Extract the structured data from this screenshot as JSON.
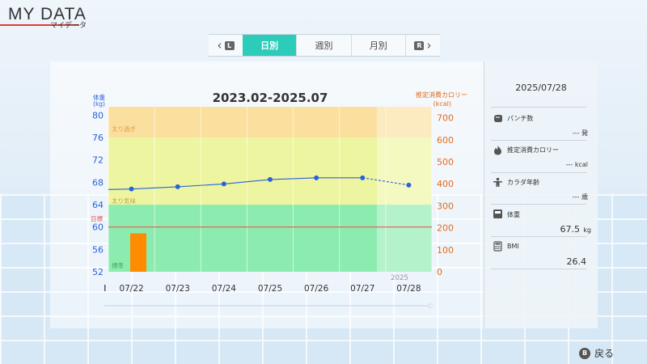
{
  "header": {
    "title": "MY DATA",
    "subtitle": "マイデータ"
  },
  "tabs": {
    "prev_badge": "L",
    "next_badge": "R",
    "items": [
      {
        "label": "日別",
        "active": true
      },
      {
        "label": "週別",
        "active": false
      },
      {
        "label": "月別",
        "active": false
      }
    ]
  },
  "chart": {
    "title": "2023.02-2025.07",
    "left_axis_label": "体重",
    "left_axis_unit": "(kg)",
    "right_axis_label": "推定消費カロリー",
    "right_axis_unit": "(kcal)",
    "zone_labels": {
      "over": "太り過ぎ",
      "slightly_over": "太り気味",
      "target": "目標",
      "standard": "標準"
    },
    "year_label": "2025"
  },
  "chart_data": {
    "type": "line",
    "categories": [
      "07/22",
      "07/23",
      "07/24",
      "07/25",
      "07/26",
      "07/27",
      "07/28"
    ],
    "series": [
      {
        "name": "体重",
        "axis": "left",
        "values": [
          66.8,
          67.2,
          67.7,
          68.5,
          68.8,
          68.8,
          67.5
        ]
      }
    ],
    "bar_series": [
      {
        "name": "推定消費カロリー",
        "axis": "right",
        "values": [
          175,
          null,
          null,
          null,
          null,
          null,
          null
        ]
      }
    ],
    "left_ticks": [
      52,
      56,
      60,
      64,
      68,
      72,
      76,
      80
    ],
    "right_ticks": [
      0,
      100,
      200,
      300,
      400,
      500,
      600,
      700
    ],
    "ylim_left": [
      52,
      81.5
    ],
    "ylim_right": [
      0,
      750
    ],
    "target_weight": 60,
    "zones": {
      "standard_max": 64,
      "slightly_over_max": 76
    },
    "colors": {
      "weight_line": "#2a62d8",
      "calorie_bar": "#ff8c00",
      "target_line": "#e85a5a",
      "zone_over": "#fbdf9e",
      "zone_slightly_over": "#eef5a0",
      "zone_standard": "#8cecb0",
      "left_axis_text": "#2a62d8",
      "right_axis_text": "#e66a1a"
    }
  },
  "side": {
    "date": "2025/07/28",
    "items": [
      {
        "icon": "punch-icon",
        "label": "パンチ数",
        "value": "--- 発"
      },
      {
        "icon": "flame-icon",
        "label": "推定消費カロリー",
        "value": "--- kcal"
      },
      {
        "icon": "body-age-icon",
        "label": "カラダ年齢",
        "value": "--- 歳"
      }
    ],
    "weight": {
      "icon": "scale-icon",
      "label": "体重",
      "value": "67.5",
      "unit": "kg"
    },
    "bmi": {
      "icon": "calculator-icon",
      "label": "BMI",
      "value": "26.4"
    }
  },
  "footer": {
    "back_badge": "B",
    "back_label": "戻る"
  }
}
